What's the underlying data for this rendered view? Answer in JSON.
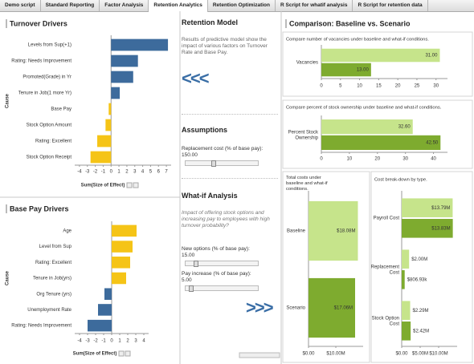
{
  "tabs": [
    "Demo script",
    "Standard Reporting",
    "Factor Analysis",
    "Retention Analytics",
    "Retention Optimization",
    "R Script for whatif analysis",
    "R Script for retention data"
  ],
  "active_tab": 3,
  "retention_model": {
    "title": "Retention Model",
    "description": "Results of predictive model show the impact of various factors on Turnover Rate and Base Pay.",
    "back_button": "<<<"
  },
  "assumptions": {
    "title": "Assumptions",
    "replacement_cost_label": "Replacement cost (% of base pay):",
    "replacement_cost_value": "150.00"
  },
  "what_if": {
    "title": "What-if Analysis",
    "question": "Impact of offering stock options and increasing pay to employees with high turnover probability?",
    "new_options_label": "New options (% of base pay):",
    "new_options_value": "15.00",
    "pay_increase_label": "Pay increase (% of base pay):",
    "pay_increase_value": "5.00",
    "forward_button": ">>>"
  },
  "comparison": {
    "title": "Comparison: Baseline vs. Scenario"
  },
  "chart_data": [
    {
      "type": "bar",
      "orientation": "horizontal",
      "title": "Turnover Drivers",
      "x_label": "Sum(Size of Effect)",
      "y_label": "Cause",
      "categories": [
        "Levels from Sup(+1)",
        "Rating: Needs Improvement",
        "Promoted(Grade) in Yr",
        "Tenure in Job(1 more Yr)",
        "Base Pay",
        "Stock Option Amount",
        "Rating: Excellent",
        "Stock Option Receipt"
      ],
      "values": [
        7.2,
        3.4,
        2.8,
        1.1,
        -0.3,
        -0.7,
        -1.75,
        -2.6
      ],
      "colors": [
        "#3d6b9c",
        "#3d6b9c",
        "#3d6b9c",
        "#3d6b9c",
        "#f5c417",
        "#f5c417",
        "#f5c417",
        "#f5c417"
      ],
      "xlim": [
        -4.6,
        7.6
      ],
      "xticks": [
        -4,
        -3,
        -2,
        -1,
        0,
        1,
        2,
        3,
        4,
        5,
        6,
        7
      ]
    },
    {
      "type": "bar",
      "orientation": "horizontal",
      "title": "Base Pay Drivers",
      "x_label": "Sum(Size of Effect)",
      "y_label": "Cause",
      "categories": [
        "Age",
        "Level from Sup",
        "Rating: Excellent",
        "Tenure in Job(yrs)",
        "Org Tenure (yrs)",
        "Unemployment Rate",
        "Rating: Needs Improvement"
      ],
      "values": [
        3.1,
        2.6,
        2.3,
        1.8,
        -0.9,
        -1.7,
        -3.0
      ],
      "colors": [
        "#f5c417",
        "#f5c417",
        "#f5c417",
        "#f5c417",
        "#3d6b9c",
        "#3d6b9c",
        "#3d6b9c"
      ],
      "xlim": [
        -4.6,
        4.6
      ],
      "xticks": [
        -4,
        -3,
        -2,
        -1,
        0,
        1,
        2,
        3,
        4
      ]
    },
    {
      "type": "bar",
      "orientation": "horizontal",
      "title": "Compare number of vacancies under baseline and what-if conditions.",
      "categories": [
        "Vacancies"
      ],
      "series": [
        {
          "color": "#c6e48b",
          "values": [
            31
          ],
          "value_labels": [
            "31.00"
          ]
        },
        {
          "color": "#7eab2f",
          "values": [
            13
          ],
          "value_labels": [
            "13.00"
          ]
        }
      ],
      "xlim": [
        0,
        33
      ],
      "xticks": [
        0,
        5,
        10,
        15,
        20,
        25,
        30
      ]
    },
    {
      "type": "bar",
      "orientation": "horizontal",
      "title": "Compare percent of stock ownership under baseline and what-if conditions.",
      "categories": [
        "Percent Stock Ownership"
      ],
      "series": [
        {
          "color": "#c6e48b",
          "values": [
            32.6
          ],
          "value_labels": [
            "32.60"
          ]
        },
        {
          "color": "#7eab2f",
          "values": [
            42.5
          ],
          "value_labels": [
            "42.50"
          ]
        }
      ],
      "xlim": [
        0,
        45
      ],
      "xticks": [
        0,
        10,
        20,
        30,
        40
      ]
    },
    {
      "type": "bar",
      "orientation": "horizontal",
      "title": "Total costs under baseline and what-if conditions.",
      "categories": [
        "Baseline",
        "Scenario"
      ],
      "values": [
        18080000,
        17060000
      ],
      "value_labels": [
        "$18.08M",
        "$17.06M"
      ],
      "colors": [
        "#c6e48b",
        "#7eab2f"
      ],
      "xlim": [
        0,
        20000000
      ],
      "xticks": [
        {
          "value": 0,
          "label": "$0.00"
        },
        {
          "value": 10000000,
          "label": "$10.00M"
        }
      ]
    },
    {
      "type": "bar",
      "orientation": "horizontal",
      "title": "Cost break-down by type.",
      "categories": [
        "Payroll Cost",
        "Replacement Cost",
        "Stock Option Cost"
      ],
      "series": [
        {
          "color": "#c6e48b",
          "values": [
            13790000,
            2000000,
            2290000
          ],
          "value_labels": [
            "$13.79M",
            "$2.00M",
            "$2.29M"
          ]
        },
        {
          "color": "#7eab2f",
          "values": [
            13830000,
            806930,
            2420000
          ],
          "value_labels": [
            "$13.83M",
            "$806.93k",
            "$2.42M"
          ]
        }
      ],
      "xlim": [
        0,
        15000000
      ],
      "xticks": [
        {
          "value": 0,
          "label": "$0.00"
        },
        {
          "value": 5000000,
          "label": "$5.00M"
        },
        {
          "value": 10000000,
          "label": "$10.00M"
        }
      ]
    }
  ]
}
